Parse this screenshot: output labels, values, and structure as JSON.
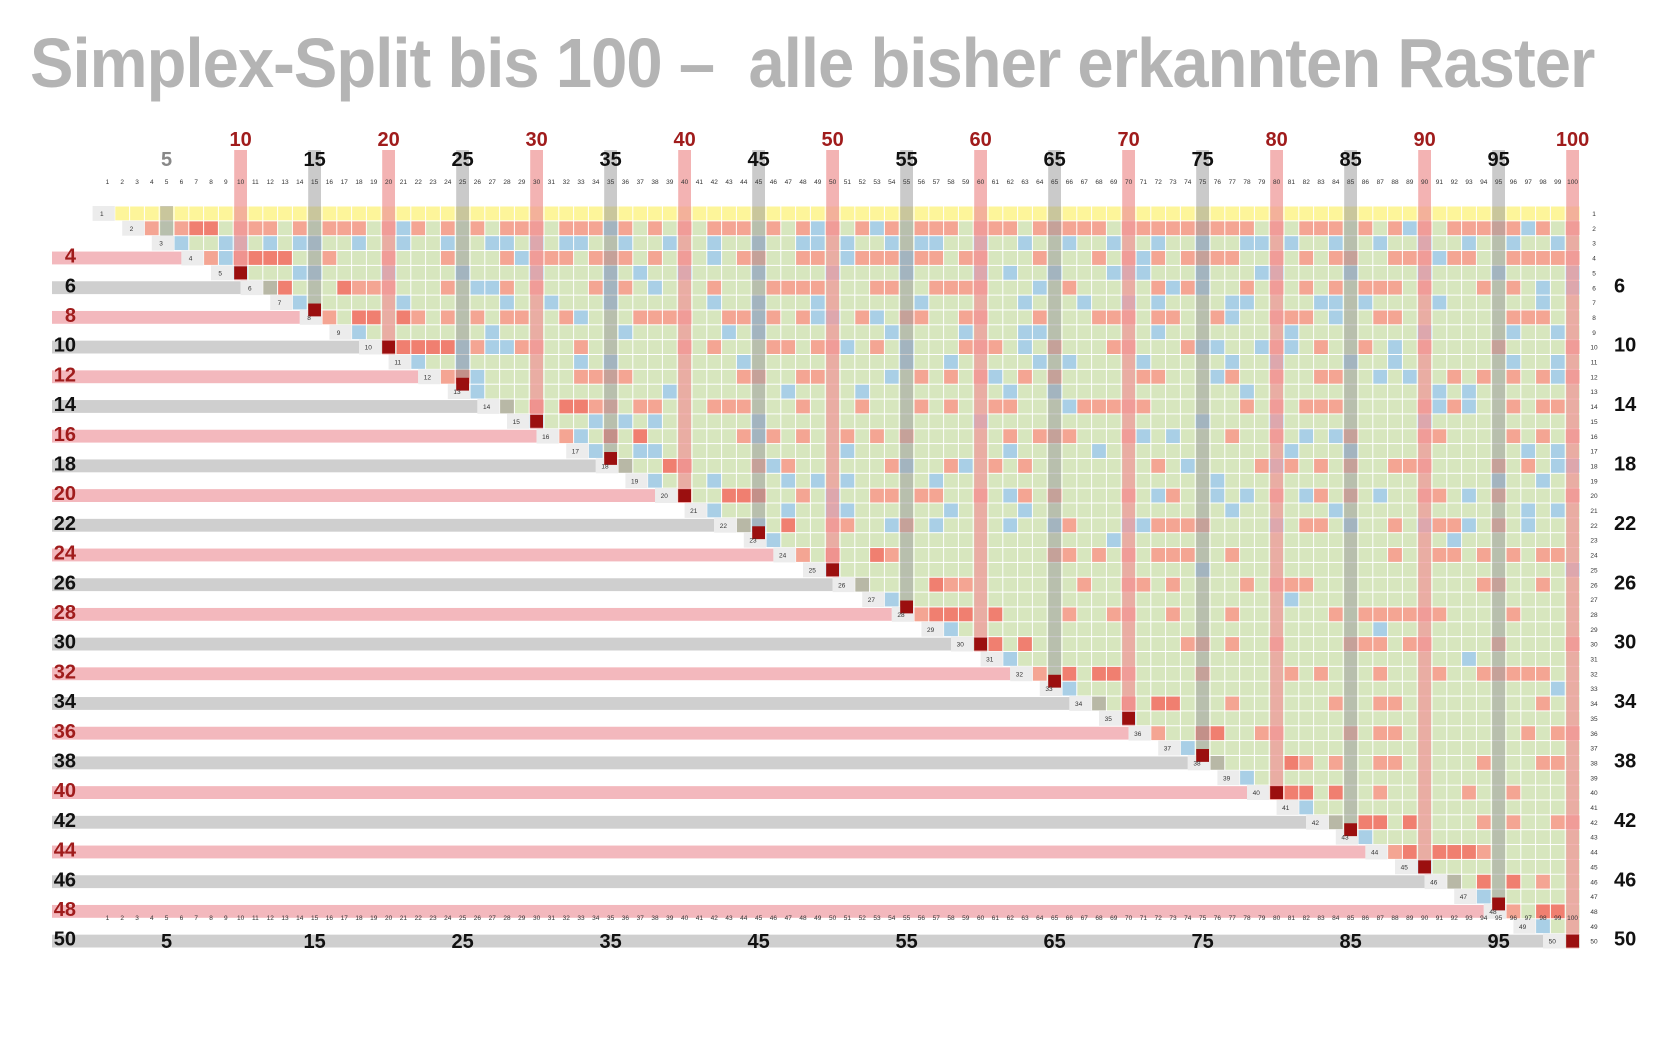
{
  "title": "Simplex-Split bis 100 –  alle bisher erkannten Raster",
  "grid": {
    "columns": 100,
    "rows": 50,
    "column_labels_major_top": [
      {
        "n": 5,
        "style": "gray"
      },
      {
        "n": 10,
        "style": "red"
      },
      {
        "n": 15,
        "style": "black"
      },
      {
        "n": 20,
        "style": "red"
      },
      {
        "n": 25,
        "style": "black"
      },
      {
        "n": 30,
        "style": "red"
      },
      {
        "n": 35,
        "style": "black"
      },
      {
        "n": 40,
        "style": "red"
      },
      {
        "n": 45,
        "style": "black"
      },
      {
        "n": 50,
        "style": "red"
      },
      {
        "n": 55,
        "style": "black"
      },
      {
        "n": 60,
        "style": "red"
      },
      {
        "n": 65,
        "style": "black"
      },
      {
        "n": 70,
        "style": "red"
      },
      {
        "n": 75,
        "style": "black"
      },
      {
        "n": 80,
        "style": "red"
      },
      {
        "n": 85,
        "style": "black"
      },
      {
        "n": 90,
        "style": "red"
      },
      {
        "n": 95,
        "style": "black"
      },
      {
        "n": 100,
        "style": "red"
      }
    ],
    "column_labels_major_bottom": [
      5,
      15,
      25,
      35,
      45,
      55,
      65,
      75,
      85,
      95
    ],
    "row_labels_left": [
      {
        "n": 4,
        "style": "red"
      },
      {
        "n": 6,
        "style": "black"
      },
      {
        "n": 8,
        "style": "red"
      },
      {
        "n": 10,
        "style": "black"
      },
      {
        "n": 12,
        "style": "red"
      },
      {
        "n": 14,
        "style": "black"
      },
      {
        "n": 16,
        "style": "red"
      },
      {
        "n": 18,
        "style": "black"
      },
      {
        "n": 20,
        "style": "red"
      },
      {
        "n": 22,
        "style": "black"
      },
      {
        "n": 24,
        "style": "red"
      },
      {
        "n": 26,
        "style": "black"
      },
      {
        "n": 28,
        "style": "red"
      },
      {
        "n": 30,
        "style": "black"
      },
      {
        "n": 32,
        "style": "red"
      },
      {
        "n": 34,
        "style": "black"
      },
      {
        "n": 36,
        "style": "red"
      },
      {
        "n": 38,
        "style": "black"
      },
      {
        "n": 40,
        "style": "red"
      },
      {
        "n": 42,
        "style": "black"
      },
      {
        "n": 44,
        "style": "red"
      },
      {
        "n": 46,
        "style": "black"
      },
      {
        "n": 48,
        "style": "red"
      },
      {
        "n": 50,
        "style": "black"
      }
    ],
    "row_labels_right": [
      6,
      10,
      14,
      18,
      22,
      26,
      30,
      34,
      38,
      42,
      46,
      50
    ],
    "colors": {
      "title": "#b4b4b4",
      "label_red": "#a01c1c",
      "label_black": "#111111",
      "label_gray": "#888888",
      "row1_yellow": "#fdf59a",
      "base_green": "#d7e6be",
      "cell_blue": "#a9cfe6",
      "cell_red": "#f4a593",
      "cell_red_strong": "#f07f70",
      "column_red_overlay": "#ef9a9a",
      "column_gray_overlay": "#9e9e9e",
      "row_pink_band": "#f3b8bd",
      "row_gray_band": "#cfcfcf",
      "diagonal_light": "#ececec",
      "marker_dark_red": "#9b0f0f"
    }
  }
}
